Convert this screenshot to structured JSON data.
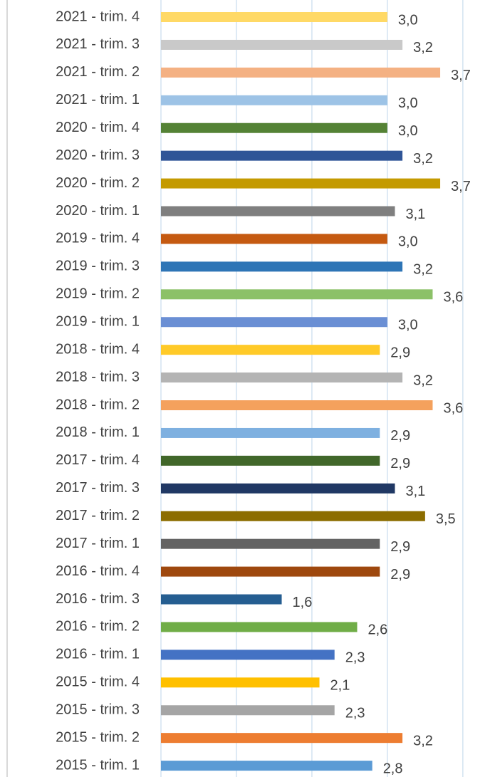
{
  "chart_data": {
    "type": "hbar",
    "categories": [
      "2021 - trim. 4",
      "2021 - trim. 3",
      "2021 - trim. 2",
      "2021 - trim. 1",
      "2020 - trim. 4",
      "2020 - trim. 3",
      "2020 - trim. 2",
      "2020 - trim. 1",
      "2019 - trim. 4",
      "2019 - trim. 3",
      "2019 - trim. 2",
      "2019 - trim. 1",
      "2018 - trim. 4",
      "2018 - trim. 3",
      "2018 - trim. 2",
      "2018 - trim. 1",
      "2017 - trim. 4",
      "2017 - trim. 3",
      "2017 - trim. 2",
      "2017 - trim. 1",
      "2016 - trim. 4",
      "2016 - trim. 3",
      "2016 - trim. 2",
      "2016 - trim. 1",
      "2015 - trim. 4",
      "2015 - trim. 3",
      "2015 - trim. 2",
      "2015 - trim. 1"
    ],
    "values": [
      3.0,
      3.2,
      3.7,
      3.0,
      3.0,
      3.2,
      3.7,
      3.1,
      3.0,
      3.2,
      3.6,
      3.0,
      2.9,
      3.2,
      3.6,
      2.9,
      2.9,
      3.1,
      3.5,
      2.9,
      2.9,
      1.6,
      2.6,
      2.3,
      2.1,
      2.3,
      3.2,
      2.8
    ],
    "value_labels": [
      "3,0",
      "3,2",
      "3,7",
      "3,0",
      "3,0",
      "3,2",
      "3,7",
      "3,1",
      "3,0",
      "3,2",
      "3,6",
      "3,0",
      "2,9",
      "3,2",
      "3,6",
      "2,9",
      "2,9",
      "3,1",
      "3,5",
      "2,9",
      "2,9",
      "1,6",
      "2,6",
      "2,3",
      "2,1",
      "2,3",
      "3,2",
      "2,8"
    ],
    "colors": [
      "#ffd966",
      "#c9c9c9",
      "#f4b183",
      "#9dc3e6",
      "#548235",
      "#2f5597",
      "#c49a00",
      "#7f7f7f",
      "#c55a11",
      "#2e75b6",
      "#8cc168",
      "#6a8fd4",
      "#ffca28",
      "#b4b4b4",
      "#f4a15d",
      "#7eb0e0",
      "#41672a",
      "#203864",
      "#8c6d00",
      "#636363",
      "#9e480e",
      "#255e91",
      "#70ad47",
      "#4472c4",
      "#ffc000",
      "#a5a5a5",
      "#ed7d31",
      "#5b9bd5"
    ],
    "xlim": [
      0,
      4.36
    ],
    "xticks": [
      0,
      1,
      2,
      3,
      4
    ],
    "grid": true
  }
}
